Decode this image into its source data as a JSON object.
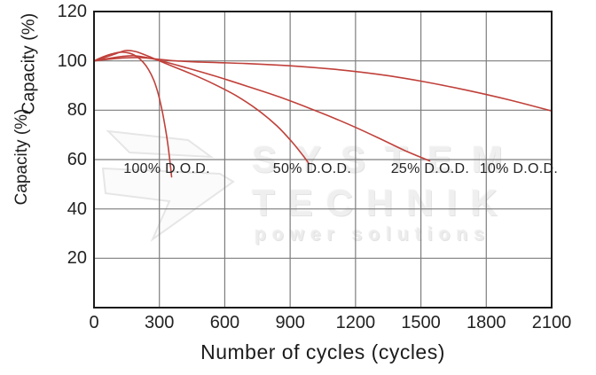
{
  "chart_data": {
    "type": "line",
    "title": "",
    "xlabel": "Number of cycles (cycles)",
    "ylabel": "Capacity (%)",
    "ylabel_rendered_twice": true,
    "xlim": [
      0,
      2100
    ],
    "ylim": [
      0,
      120
    ],
    "x_ticks": [
      0,
      300,
      600,
      900,
      1200,
      1500,
      1800,
      2100
    ],
    "y_ticks": [
      120,
      100,
      80,
      60,
      40,
      20
    ],
    "grid": true,
    "legend_position": "none",
    "curve_color": "#c0403a",
    "grid_color": "#7d7d7d",
    "border_color": "#1b1b1b",
    "series": [
      {
        "name": "100% D.O.D.",
        "points": [
          [
            0,
            100
          ],
          [
            40,
            101.6
          ],
          [
            80,
            102.8
          ],
          [
            120,
            103.5
          ],
          [
            160,
            103.2
          ],
          [
            195,
            101.8
          ],
          [
            225,
            99.5
          ],
          [
            250,
            96.5
          ],
          [
            275,
            92
          ],
          [
            295,
            86.5
          ],
          [
            312,
            80
          ],
          [
            327,
            73
          ],
          [
            340,
            65.5
          ],
          [
            350,
            58
          ],
          [
            356,
            53
          ]
        ]
      },
      {
        "name": "50% D.O.D.",
        "points": [
          [
            0,
            100
          ],
          [
            50,
            101.4
          ],
          [
            100,
            102.9
          ],
          [
            145,
            104.2
          ],
          [
            190,
            103.8
          ],
          [
            240,
            102.2
          ],
          [
            290,
            100.4
          ],
          [
            350,
            98.2
          ],
          [
            450,
            94.6
          ],
          [
            550,
            90.6
          ],
          [
            650,
            86
          ],
          [
            750,
            80.2
          ],
          [
            840,
            73.6
          ],
          [
            910,
            67
          ],
          [
            960,
            61.5
          ],
          [
            985,
            58.5
          ]
        ]
      },
      {
        "name": "25% D.O.D.",
        "points": [
          [
            0,
            100
          ],
          [
            60,
            100.9
          ],
          [
            120,
            101.7
          ],
          [
            180,
            102.1
          ],
          [
            240,
            101.4
          ],
          [
            300,
            100.2
          ],
          [
            400,
            97.8
          ],
          [
            550,
            94
          ],
          [
            700,
            89.8
          ],
          [
            850,
            85.4
          ],
          [
            1000,
            80.4
          ],
          [
            1150,
            75
          ],
          [
            1300,
            69
          ],
          [
            1420,
            63.9
          ],
          [
            1540,
            59.5
          ]
        ]
      },
      {
        "name": "10% D.O.D.",
        "points": [
          [
            0,
            100
          ],
          [
            70,
            100.7
          ],
          [
            140,
            101.2
          ],
          [
            210,
            101.3
          ],
          [
            280,
            100.8
          ],
          [
            360,
            100.1
          ],
          [
            500,
            99.5
          ],
          [
            700,
            98.9
          ],
          [
            900,
            98
          ],
          [
            1100,
            96.6
          ],
          [
            1300,
            94.6
          ],
          [
            1500,
            91.8
          ],
          [
            1700,
            88.3
          ],
          [
            1900,
            84.3
          ],
          [
            2100,
            79.7
          ]
        ]
      }
    ],
    "annotations": [
      {
        "text": "100% D.O.D.",
        "x": 334,
        "y": 56
      },
      {
        "text": "50% D.O.D.",
        "x": 1001,
        "y": 56
      },
      {
        "text": "25% D.O.D.",
        "x": 1542,
        "y": 56
      },
      {
        "text": "10% D.O.D.",
        "x": 1949,
        "y": 56
      }
    ]
  },
  "watermark": {
    "line1": "SYSTEM",
    "line2": "TECHNIK",
    "line3": "power solutions"
  }
}
